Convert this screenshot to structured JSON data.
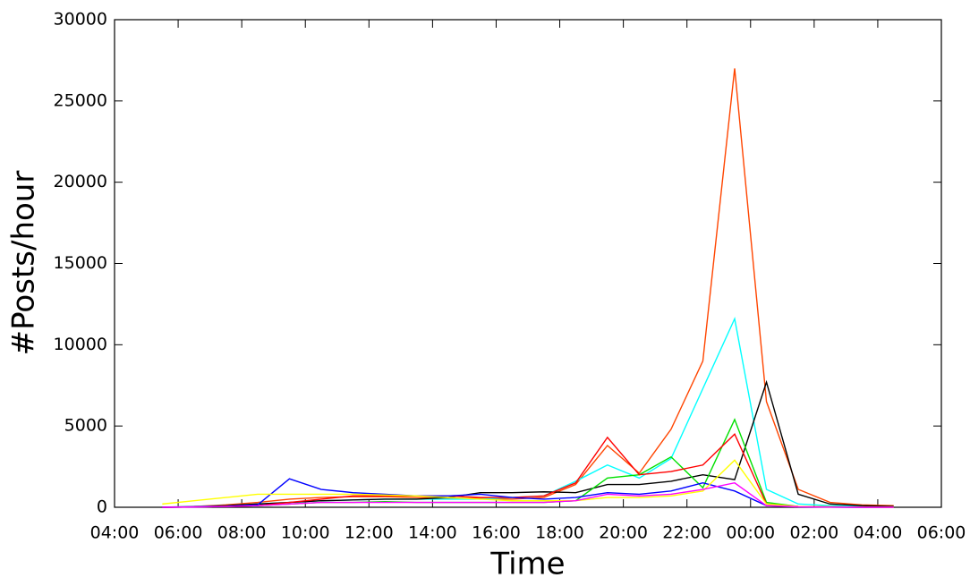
{
  "chart_data": {
    "type": "line",
    "x_label": "Time",
    "y_label": "#Posts/hour",
    "x": [
      5.5,
      6.5,
      7.5,
      8.5,
      9.5,
      10.5,
      11.5,
      12.5,
      13.5,
      14.5,
      15.5,
      16.5,
      17.5,
      18.5,
      19.5,
      20.5,
      21.5,
      22.5,
      23.5,
      24.5,
      25.5,
      26.5,
      27.5,
      28.5
    ],
    "series": [
      {
        "color": "#ff4500",
        "values": [
          0,
          50,
          150,
          300,
          500,
          600,
          650,
          650,
          600,
          550,
          550,
          500,
          600,
          1400,
          3800,
          2100,
          4800,
          9000,
          27000,
          6500,
          1100,
          300,
          150,
          100
        ]
      },
      {
        "color": "#00ffff",
        "values": [
          0,
          50,
          100,
          200,
          300,
          400,
          450,
          500,
          500,
          500,
          500,
          600,
          700,
          1600,
          2600,
          1800,
          3000,
          7300,
          11600,
          1100,
          200,
          100,
          50,
          30
        ]
      },
      {
        "color": "#000000",
        "values": [
          0,
          30,
          100,
          200,
          300,
          400,
          450,
          500,
          500,
          600,
          900,
          900,
          950,
          900,
          1400,
          1400,
          1600,
          2000,
          1700,
          7700,
          800,
          200,
          100,
          50
        ]
      },
      {
        "color": "#00e000",
        "values": [
          0,
          20,
          50,
          100,
          200,
          300,
          300,
          350,
          300,
          300,
          300,
          300,
          300,
          400,
          1800,
          2000,
          3100,
          1200,
          5400,
          300,
          50,
          20,
          10,
          0
        ]
      },
      {
        "color": "#ff0000",
        "values": [
          0,
          20,
          50,
          100,
          300,
          500,
          700,
          700,
          700,
          700,
          600,
          600,
          700,
          1500,
          4300,
          2000,
          2200,
          2600,
          4500,
          200,
          50,
          20,
          10,
          0
        ]
      },
      {
        "color": "#0000ff",
        "values": [
          0,
          20,
          50,
          150,
          1750,
          1100,
          900,
          800,
          700,
          700,
          800,
          600,
          500,
          600,
          900,
          800,
          1000,
          1500,
          1000,
          100,
          30,
          10,
          0,
          0
        ]
      },
      {
        "color": "#ffff00",
        "values": [
          200,
          400,
          600,
          800,
          800,
          800,
          800,
          750,
          700,
          600,
          500,
          400,
          400,
          400,
          600,
          600,
          700,
          1000,
          2900,
          200,
          50,
          20,
          10,
          0
        ]
      },
      {
        "color": "#ff00ff",
        "values": [
          0,
          20,
          50,
          100,
          200,
          300,
          300,
          300,
          300,
          300,
          300,
          300,
          300,
          400,
          800,
          700,
          800,
          1100,
          1500,
          100,
          30,
          10,
          0,
          0
        ]
      }
    ],
    "xlim": [
      4,
      30
    ],
    "xticks": [
      {
        "value": 4,
        "label": "04:00"
      },
      {
        "value": 6,
        "label": "06:00"
      },
      {
        "value": 8,
        "label": "08:00"
      },
      {
        "value": 10,
        "label": "10:00"
      },
      {
        "value": 12,
        "label": "12:00"
      },
      {
        "value": 14,
        "label": "14:00"
      },
      {
        "value": 16,
        "label": "16:00"
      },
      {
        "value": 18,
        "label": "18:00"
      },
      {
        "value": 20,
        "label": "20:00"
      },
      {
        "value": 22,
        "label": "22:00"
      },
      {
        "value": 24,
        "label": "00:00"
      },
      {
        "value": 26,
        "label": "02:00"
      },
      {
        "value": 28,
        "label": "04:00"
      },
      {
        "value": 30,
        "label": "06:00"
      }
    ],
    "ylim": [
      0,
      30000
    ],
    "yticks": [
      0,
      5000,
      10000,
      15000,
      20000,
      25000,
      30000
    ]
  }
}
